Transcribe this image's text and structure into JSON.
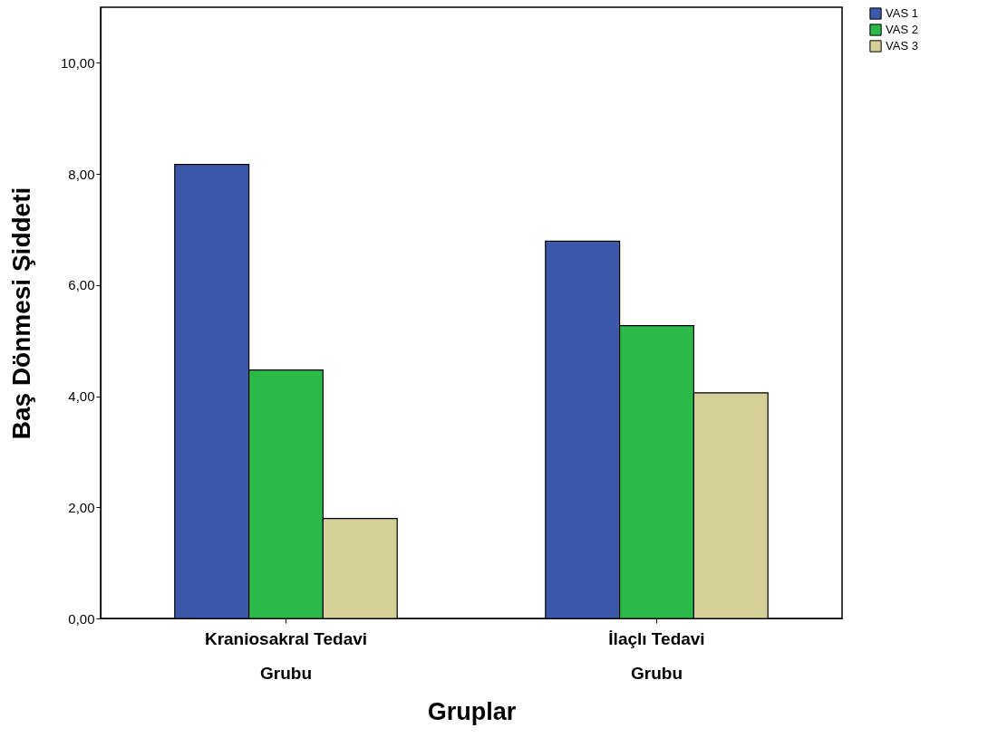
{
  "chart_data": {
    "type": "bar",
    "xlabel": "Gruplar",
    "ylabel": "Baş Dönmesi Şiddeti",
    "categories": [
      "Kraniosakral Tedavi Grubu",
      "İlaçlı Tedavi Grubu"
    ],
    "series": [
      {
        "name": "VAS 1",
        "color": "#3c58a8",
        "values": [
          8.17,
          6.79
        ]
      },
      {
        "name": "VAS 2",
        "color": "#2db84a",
        "values": [
          4.47,
          5.27
        ]
      },
      {
        "name": "VAS 3",
        "color": "#d5cf98",
        "values": [
          1.8,
          4.06
        ]
      }
    ],
    "ylim": [
      0,
      11
    ],
    "yticks": [
      {
        "value": 0,
        "label": "0,00"
      },
      {
        "value": 2,
        "label": "2,00"
      },
      {
        "value": 4,
        "label": "4,00"
      },
      {
        "value": 6,
        "label": "6,00"
      },
      {
        "value": 8,
        "label": "8,00"
      },
      {
        "value": 10,
        "label": "10,00"
      }
    ],
    "grid": false,
    "legend": "top right"
  }
}
